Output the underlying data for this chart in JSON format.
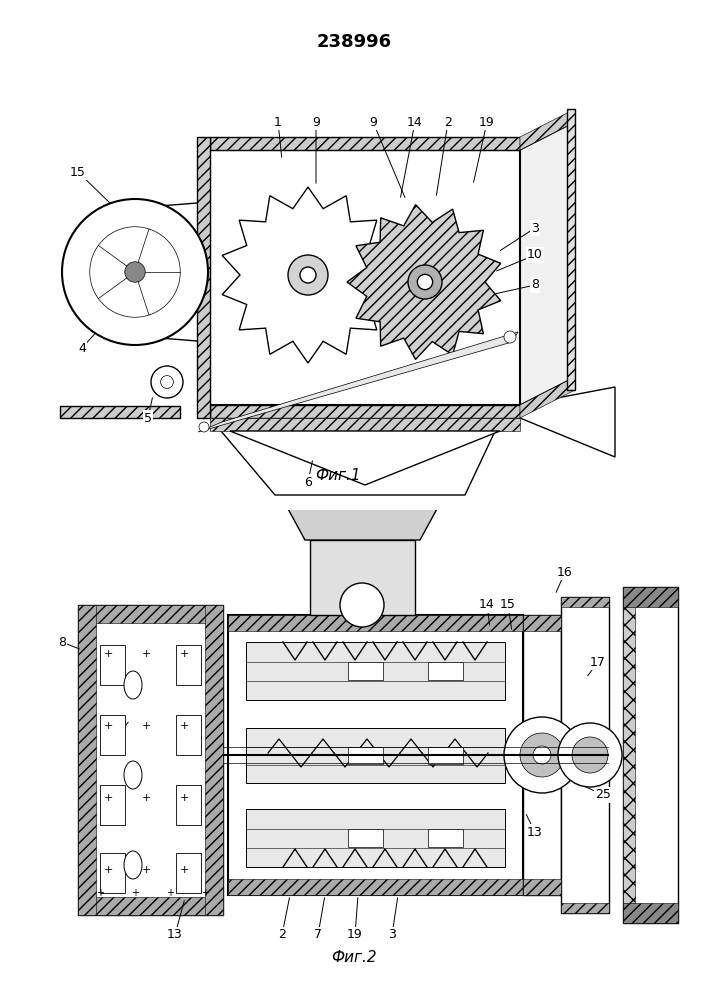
{
  "patent_number": "238996",
  "fig1_caption": "Фиг.1",
  "fig2_caption": "Фиг.2",
  "bg_color": "#ffffff",
  "line_color": "#000000",
  "fig_width": 7.07,
  "fig_height": 10.0,
  "dpi": 100,
  "patent_fontsize": 13,
  "caption_fontsize": 11,
  "label_fontsize": 9
}
